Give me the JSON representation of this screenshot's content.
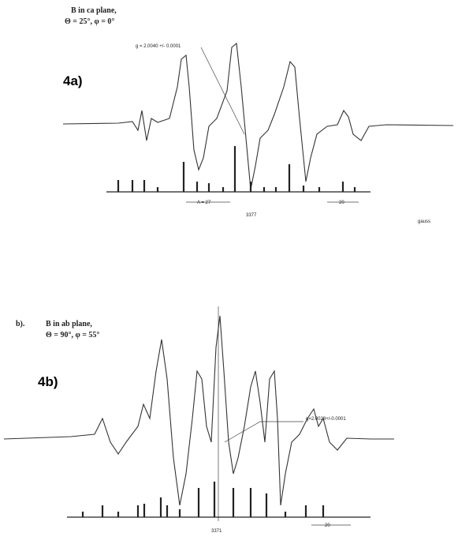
{
  "panel_a": {
    "caption_lines": [
      "B in ca plane,",
      "Θ = 25°, φ = 0°"
    ],
    "label": "4a)",
    "g_annotation": "g = 2.0040 +/- 0.0001",
    "hyperfine_label": "A = 27",
    "center_field": "3377",
    "scale_label": "20",
    "unit": "gauss"
  },
  "panel_b": {
    "prefix": "b).",
    "caption_lines": [
      "B in ab plane,",
      "Θ = 90°, φ = 55°"
    ],
    "label": "4b)",
    "g_annotation": "g=2.0028+/-0.0001",
    "center_field": "3371",
    "scale_label": "20"
  }
}
